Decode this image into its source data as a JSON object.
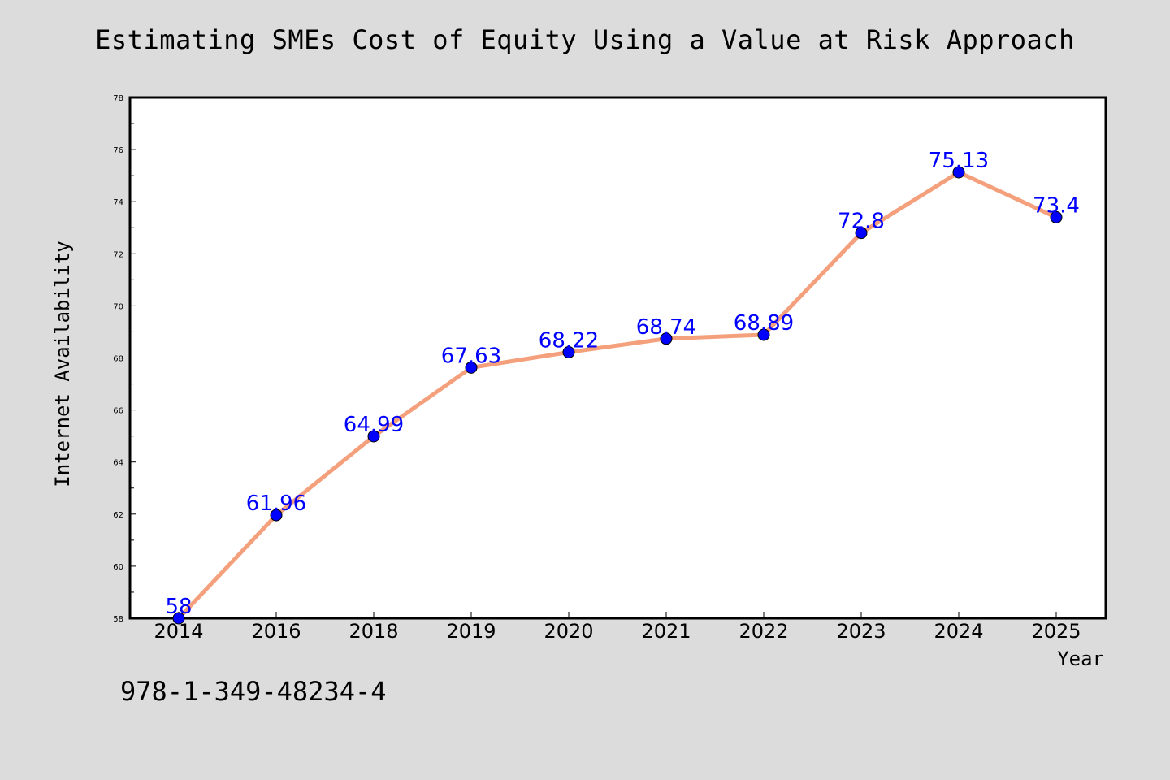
{
  "title": "Estimating SMEs Cost of Equity Using a Value at Risk Approach",
  "footer": {
    "isbn": "978-1-349-48234-4"
  },
  "colors": {
    "background": "#dcdcdc",
    "plot_background": "#ffffff",
    "line": "#f4a07c",
    "marker": "#0000ff",
    "data_label": "#0000ff"
  },
  "chart_data": {
    "type": "line",
    "title": "Estimating SMEs Cost of Equity Using a Value at Risk Approach",
    "xlabel": "Year",
    "ylabel": "Internet Availability",
    "categories": [
      "2014",
      "2016",
      "2018",
      "2019",
      "2020",
      "2021",
      "2022",
      "2023",
      "2024",
      "2025"
    ],
    "series": [
      {
        "values": [
          58,
          61.96,
          64.99,
          67.63,
          68.22,
          68.74,
          68.89,
          72.8,
          75.13,
          73.4
        ],
        "labels": [
          "58",
          "61.96",
          "64.99",
          "67.63",
          "68.22",
          "68.74",
          "68.89",
          "72.8",
          "75.13",
          "73.4"
        ]
      }
    ],
    "ylim": [
      58,
      78
    ],
    "yticks": [
      58,
      60,
      62,
      64,
      66,
      68,
      70,
      72,
      74,
      76,
      78
    ],
    "grid": false,
    "legend": "none"
  }
}
